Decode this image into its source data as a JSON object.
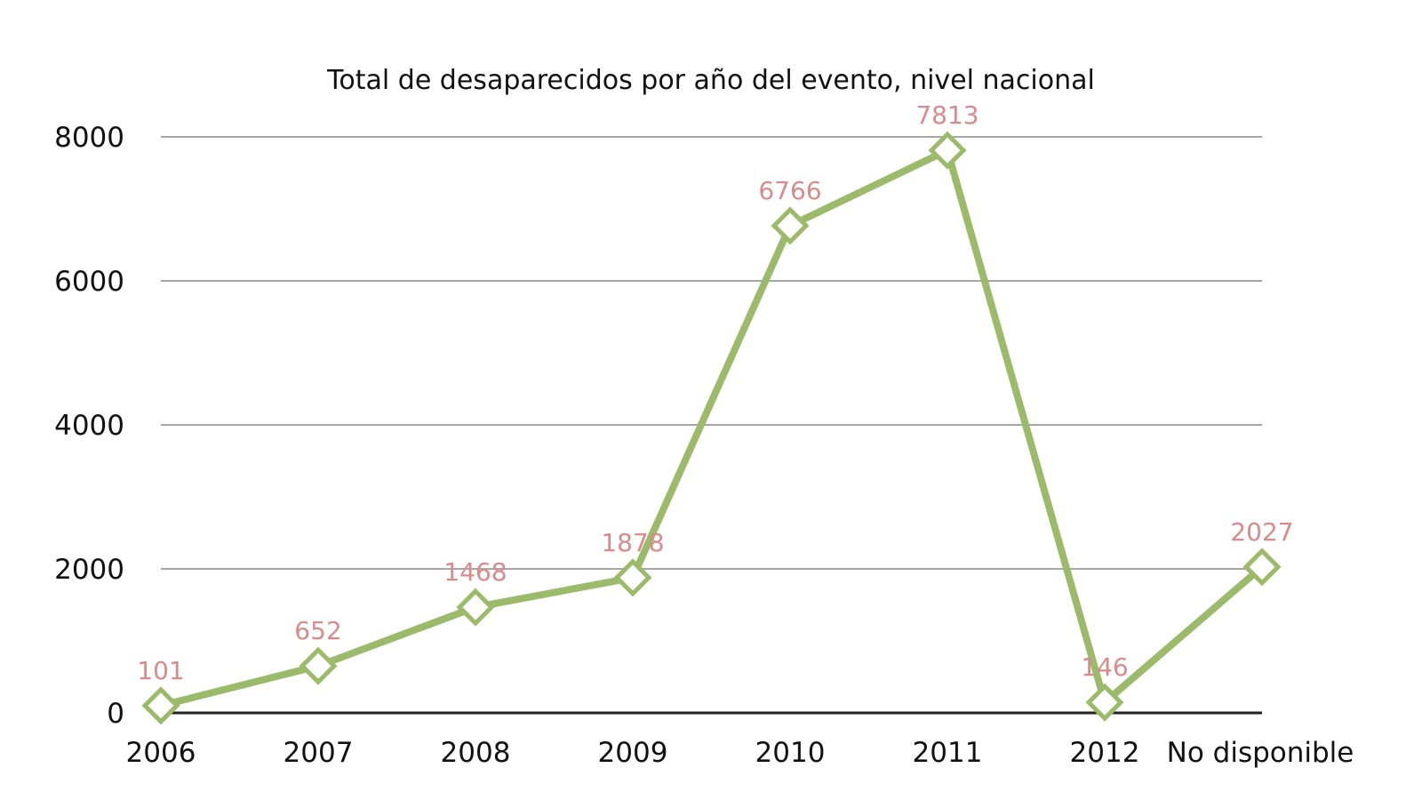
{
  "chart_data": {
    "type": "line",
    "title": "Total de desaparecidos por año del evento,  nivel nacional",
    "xlabel": "",
    "ylabel": "",
    "categories": [
      "2006",
      "2007",
      "2008",
      "2009",
      "2010",
      "2011",
      "2012",
      "No disponible"
    ],
    "series": [
      {
        "values": [
          101,
          652,
          1468,
          1878,
          6766,
          7813,
          146,
          2027
        ]
      }
    ],
    "data_labels": [
      "101",
      "652",
      "1468",
      "1878",
      "6766",
      "7813",
      "146",
      "2027"
    ],
    "ylim": [
      0,
      8000
    ],
    "yticks": [
      "0",
      "2000",
      "4000",
      "6000",
      "8000"
    ],
    "grid": true,
    "legend": "none",
    "marker": "open-diamond",
    "colors": {
      "line": "#9bbb6a",
      "data_label": "#d98a8a",
      "grid": "#a6a6a6",
      "axis": "#222222"
    }
  }
}
